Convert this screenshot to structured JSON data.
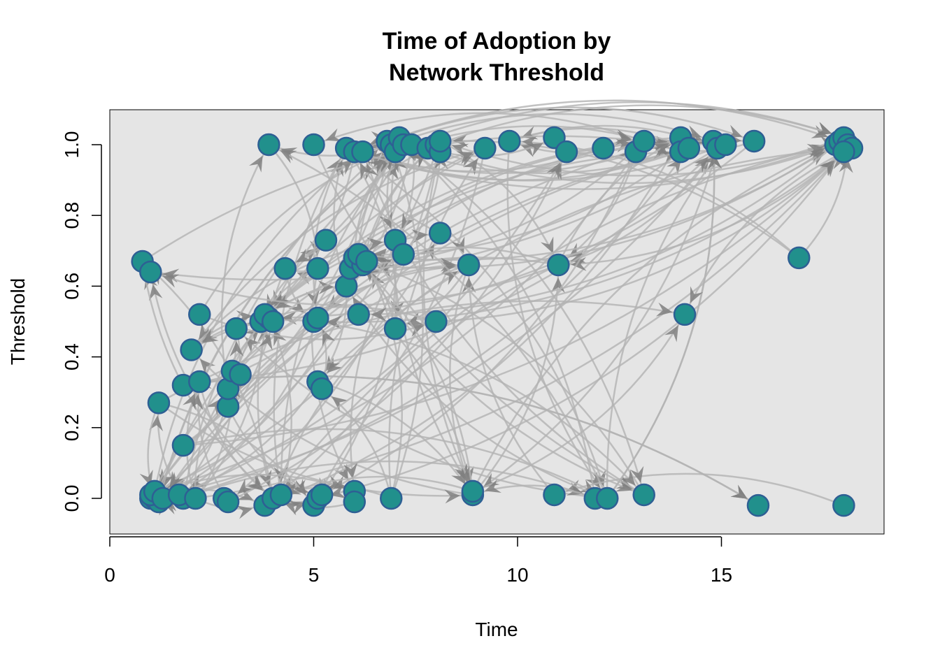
{
  "chart_data": {
    "type": "scatter",
    "title_line1": "Time of Adoption by",
    "title_line2": "Network Threshold",
    "xlabel": "Time",
    "ylabel": "Threshold",
    "xlim": [
      0,
      19
    ],
    "ylim": [
      -0.1,
      1.1
    ],
    "xticks": [
      0,
      5,
      10,
      15
    ],
    "yticks": [
      0.0,
      0.2,
      0.4,
      0.6,
      0.8,
      1.0
    ],
    "xtick_labels": [
      "0",
      "5",
      "10",
      "15"
    ],
    "ytick_labels": [
      "0.0",
      "0.2",
      "0.4",
      "0.6",
      "0.8",
      "1.0"
    ],
    "panel_background": "#e5e5e5",
    "node_fill": "#21908c",
    "node_stroke": "#2e5f94",
    "edge_color": "#b3b3b3",
    "arrow_color": "#808080",
    "points": [
      [
        1.0,
        0.0
      ],
      [
        1.1,
        0.0
      ],
      [
        1.2,
        -0.01
      ],
      [
        1.0,
        0.01
      ],
      [
        1.1,
        0.02
      ],
      [
        1.3,
        0.0
      ],
      [
        1.8,
        0.0
      ],
      [
        1.7,
        0.01
      ],
      [
        2.1,
        0.0
      ],
      [
        2.8,
        0.0
      ],
      [
        2.9,
        -0.01
      ],
      [
        3.8,
        -0.02
      ],
      [
        4.0,
        0.0
      ],
      [
        4.2,
        0.01
      ],
      [
        5.0,
        -0.02
      ],
      [
        5.1,
        0.0
      ],
      [
        5.2,
        0.01
      ],
      [
        6.0,
        0.02
      ],
      [
        6.0,
        -0.01
      ],
      [
        6.9,
        0.0
      ],
      [
        8.9,
        0.01
      ],
      [
        8.9,
        0.02
      ],
      [
        10.9,
        0.01
      ],
      [
        11.9,
        0.0
      ],
      [
        12.2,
        0.0
      ],
      [
        13.1,
        0.01
      ],
      [
        15.9,
        -0.02
      ],
      [
        18.0,
        -0.02
      ],
      [
        1.2,
        0.27
      ],
      [
        1.8,
        0.15
      ],
      [
        1.8,
        0.32
      ],
      [
        2.2,
        0.33
      ],
      [
        2.0,
        0.42
      ],
      [
        2.2,
        0.52
      ],
      [
        2.9,
        0.26
      ],
      [
        2.9,
        0.31
      ],
      [
        3.0,
        0.36
      ],
      [
        3.2,
        0.35
      ],
      [
        3.1,
        0.48
      ],
      [
        3.7,
        0.5
      ],
      [
        3.9,
        0.51
      ],
      [
        3.8,
        0.52
      ],
      [
        4.0,
        0.5
      ],
      [
        5.0,
        0.5
      ],
      [
        5.1,
        0.51
      ],
      [
        5.1,
        0.33
      ],
      [
        5.2,
        0.31
      ],
      [
        6.1,
        0.52
      ],
      [
        7.0,
        0.48
      ],
      [
        8.0,
        0.5
      ],
      [
        0.8,
        0.67
      ],
      [
        1.0,
        0.64
      ],
      [
        4.3,
        0.65
      ],
      [
        5.1,
        0.65
      ],
      [
        5.3,
        0.73
      ],
      [
        5.8,
        0.6
      ],
      [
        5.9,
        0.65
      ],
      [
        6.0,
        0.68
      ],
      [
        6.2,
        0.66
      ],
      [
        6.1,
        0.69
      ],
      [
        6.3,
        0.67
      ],
      [
        7.0,
        0.73
      ],
      [
        7.2,
        0.69
      ],
      [
        8.1,
        0.75
      ],
      [
        8.8,
        0.66
      ],
      [
        11.0,
        0.66
      ],
      [
        14.1,
        0.52
      ],
      [
        16.9,
        0.68
      ],
      [
        3.9,
        1.0
      ],
      [
        5.0,
        1.0
      ],
      [
        5.8,
        0.99
      ],
      [
        6.0,
        0.98
      ],
      [
        6.2,
        0.98
      ],
      [
        6.8,
        1.01
      ],
      [
        6.9,
        1.0
      ],
      [
        7.0,
        0.98
      ],
      [
        7.1,
        1.02
      ],
      [
        7.2,
        1.0
      ],
      [
        7.4,
        1.0
      ],
      [
        7.8,
        0.99
      ],
      [
        8.0,
        1.0
      ],
      [
        8.1,
        0.98
      ],
      [
        8.1,
        1.01
      ],
      [
        9.2,
        0.99
      ],
      [
        9.8,
        1.01
      ],
      [
        10.9,
        1.02
      ],
      [
        11.2,
        0.98
      ],
      [
        12.1,
        0.99
      ],
      [
        12.9,
        0.98
      ],
      [
        13.1,
        1.01
      ],
      [
        14.0,
        1.02
      ],
      [
        14.0,
        0.98
      ],
      [
        14.2,
        0.99
      ],
      [
        14.8,
        1.01
      ],
      [
        14.9,
        0.99
      ],
      [
        15.1,
        1.0
      ],
      [
        15.8,
        1.01
      ],
      [
        17.8,
        1.0
      ],
      [
        17.9,
        1.01
      ],
      [
        18.0,
        1.02
      ],
      [
        18.1,
        1.0
      ],
      [
        18.2,
        0.99
      ],
      [
        18.0,
        0.98
      ]
    ]
  }
}
